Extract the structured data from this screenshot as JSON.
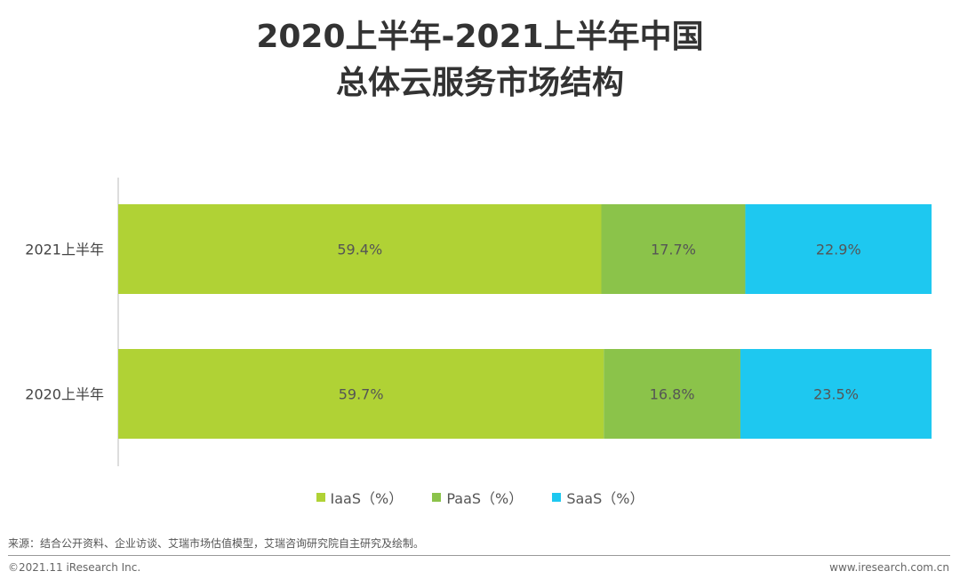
{
  "title": {
    "line1": "2020上半年-2021上半年中国",
    "line2": "总体云服务市场结构"
  },
  "chart_data": {
    "type": "bar",
    "orientation": "horizontal",
    "stacked": true,
    "categories": [
      "2021上半年",
      "2020上半年"
    ],
    "series": [
      {
        "name": "IaaS（%）",
        "values": [
          59.4,
          59.7
        ],
        "labels": [
          "59.4%",
          "59.7%"
        ],
        "color": "#b0d235"
      },
      {
        "name": "PaaS（%）",
        "values": [
          17.7,
          16.8
        ],
        "labels": [
          "17.7%",
          "16.8%"
        ],
        "color": "#8bc34a"
      },
      {
        "name": "SaaS（%）",
        "values": [
          22.9,
          23.5
        ],
        "labels": [
          "22.9%",
          "23.5%"
        ],
        "color": "#1ec8f0"
      }
    ],
    "xlim": [
      0,
      100
    ],
    "grid": false,
    "legend": "bottom"
  },
  "footer": {
    "source": "来源：结合公开资料、企业访谈、艾瑞市场估值模型，艾瑞咨询研究院自主研究及绘制。",
    "copyright": "©2021.11 iResearch Inc.",
    "website": "www.iresearch.com.cn"
  }
}
